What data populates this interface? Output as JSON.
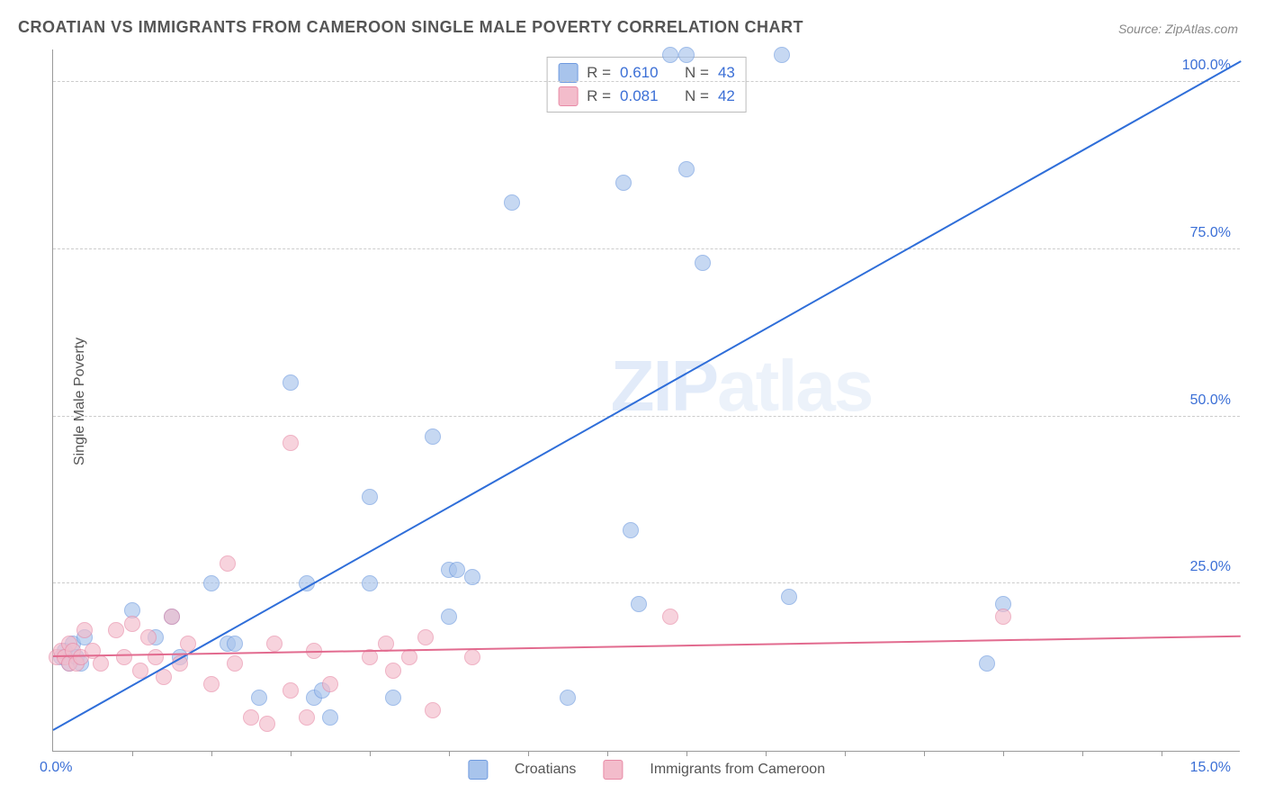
{
  "title": "CROATIAN VS IMMIGRANTS FROM CAMEROON SINGLE MALE POVERTY CORRELATION CHART",
  "source": "Source: ZipAtlas.com",
  "watermark_a": "ZIP",
  "watermark_b": "atlas",
  "chart": {
    "type": "scatter",
    "ylabel": "Single Male Poverty",
    "xlim": [
      0,
      15
    ],
    "ylim": [
      0,
      105
    ],
    "x_tick_labels": {
      "min": "0.0%",
      "max": "15.0%"
    },
    "y_ticks": [
      {
        "value": 25,
        "label": "25.0%"
      },
      {
        "value": 50,
        "label": "50.0%"
      },
      {
        "value": 75,
        "label": "75.0%"
      },
      {
        "value": 100,
        "label": "100.0%"
      }
    ],
    "x_minor_ticks": [
      1,
      2,
      3,
      4,
      5,
      6,
      7,
      8,
      9,
      10,
      11,
      12,
      13,
      14
    ],
    "background_color": "#ffffff",
    "grid_color": "#cccccc",
    "axis_color": "#999999",
    "point_radius": 9,
    "series": [
      {
        "name": "Croatians",
        "color_fill": "#a8c4ec",
        "color_stroke": "#6e9adf",
        "R": "0.610",
        "N": "43",
        "trend": {
          "x1": 0,
          "y1": 3,
          "x2": 15,
          "y2": 103,
          "color": "#2f6ed9",
          "width": 2
        },
        "points": [
          [
            0.1,
            14
          ],
          [
            0.15,
            15
          ],
          [
            0.2,
            13
          ],
          [
            0.25,
            16
          ],
          [
            0.3,
            14
          ],
          [
            0.35,
            13
          ],
          [
            0.4,
            17
          ],
          [
            1.0,
            21
          ],
          [
            1.3,
            17
          ],
          [
            1.5,
            20
          ],
          [
            1.6,
            14
          ],
          [
            2.0,
            25
          ],
          [
            2.2,
            16
          ],
          [
            2.3,
            16
          ],
          [
            2.6,
            8
          ],
          [
            3.0,
            55
          ],
          [
            3.2,
            25
          ],
          [
            3.3,
            8
          ],
          [
            3.4,
            9
          ],
          [
            3.5,
            5
          ],
          [
            4.0,
            38
          ],
          [
            4.0,
            25
          ],
          [
            4.3,
            8
          ],
          [
            4.8,
            47
          ],
          [
            5.0,
            20
          ],
          [
            5.0,
            27
          ],
          [
            5.1,
            27
          ],
          [
            5.3,
            26
          ],
          [
            5.8,
            82
          ],
          [
            6.5,
            8
          ],
          [
            7.2,
            85
          ],
          [
            7.3,
            33
          ],
          [
            7.4,
            22
          ],
          [
            7.8,
            104
          ],
          [
            8.0,
            87
          ],
          [
            8.0,
            104
          ],
          [
            8.2,
            73
          ],
          [
            9.2,
            104
          ],
          [
            9.3,
            23
          ],
          [
            11.8,
            13
          ],
          [
            12.0,
            22
          ]
        ]
      },
      {
        "name": "Immigrants from Cameroon",
        "color_fill": "#f3bccb",
        "color_stroke": "#e88aa6",
        "R": "0.081",
        "N": "42",
        "trend": {
          "x1": 0,
          "y1": 14,
          "x2": 15,
          "y2": 17,
          "color": "#e26b8f",
          "width": 2
        },
        "points": [
          [
            0.05,
            14
          ],
          [
            0.1,
            15
          ],
          [
            0.15,
            14
          ],
          [
            0.2,
            16
          ],
          [
            0.2,
            13
          ],
          [
            0.25,
            15
          ],
          [
            0.3,
            13
          ],
          [
            0.35,
            14
          ],
          [
            0.4,
            18
          ],
          [
            0.5,
            15
          ],
          [
            0.6,
            13
          ],
          [
            0.8,
            18
          ],
          [
            0.9,
            14
          ],
          [
            1.0,
            19
          ],
          [
            1.1,
            12
          ],
          [
            1.2,
            17
          ],
          [
            1.3,
            14
          ],
          [
            1.4,
            11
          ],
          [
            1.5,
            20
          ],
          [
            1.6,
            13
          ],
          [
            1.7,
            16
          ],
          [
            2.0,
            10
          ],
          [
            2.2,
            28
          ],
          [
            2.3,
            13
          ],
          [
            2.5,
            5
          ],
          [
            2.7,
            4
          ],
          [
            2.8,
            16
          ],
          [
            3.0,
            46
          ],
          [
            3.0,
            9
          ],
          [
            3.2,
            5
          ],
          [
            3.3,
            15
          ],
          [
            3.5,
            10
          ],
          [
            4.0,
            14
          ],
          [
            4.2,
            16
          ],
          [
            4.3,
            12
          ],
          [
            4.5,
            14
          ],
          [
            4.7,
            17
          ],
          [
            4.8,
            6
          ],
          [
            5.3,
            14
          ],
          [
            7.8,
            20
          ],
          [
            12.0,
            20
          ]
        ]
      }
    ],
    "stat_box": {
      "label_R": "R =",
      "label_N": "N ="
    },
    "legend_labels": {
      "series1": "Croatians",
      "series2": "Immigrants from Cameroon"
    }
  }
}
